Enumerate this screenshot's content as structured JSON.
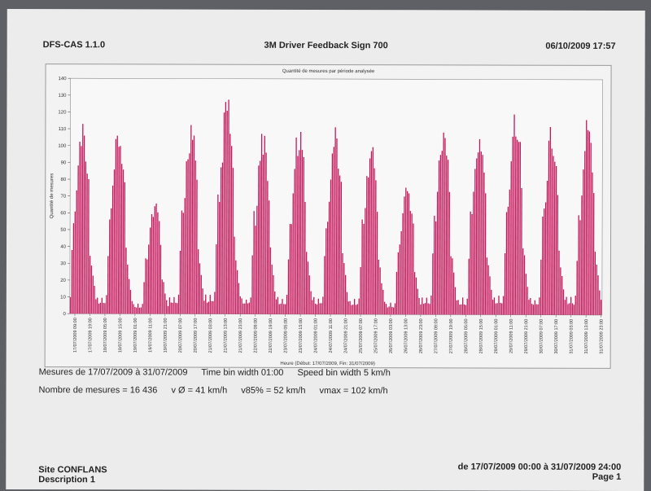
{
  "header": {
    "left": "DFS-CAS 1.1.0",
    "center": "3M Driver Feedback Sign 700",
    "right": "06/10/2009 17:57"
  },
  "chart_data": {
    "type": "bar",
    "title": "Quantité de mesures par période analysée",
    "ylabel": "Quantité de mesures",
    "xlabel": "Heure (Début: 17/07/2009, Fin: 31/07/2009)",
    "ylim": [
      0,
      140
    ],
    "yticks": [
      0,
      10,
      20,
      30,
      40,
      50,
      60,
      70,
      80,
      90,
      100,
      110,
      120,
      130,
      140
    ],
    "color": "#c2185b",
    "bin_hours": 1,
    "x_tick_labels": [
      "17/07/2009 09:00",
      "17/07/2009 19:00",
      "18/07/2009 05:00",
      "18/07/2009 15:00",
      "19/07/2009 01:00",
      "19/07/2009 11:00",
      "19/07/2009 21:00",
      "20/07/2009 07:00",
      "20/07/2009 17:00",
      "21/07/2009 03:00",
      "21/07/2009 13:00",
      "21/07/2009 23:00",
      "22/07/2009 09:00",
      "22/07/2009 19:00",
      "23/07/2009 05:00",
      "23/07/2009 15:00",
      "24/07/2009 01:00",
      "24/07/2009 11:00",
      "24/07/2009 21:00",
      "25/07/2009 07:00",
      "25/07/2009 17:00",
      "26/07/2009 03:00",
      "26/07/2009 13:00",
      "26/07/2009 23:00",
      "27/07/2009 09:00",
      "27/07/2009 19:00",
      "28/07/2009 05:00",
      "28/07/2009 15:00",
      "29/07/2009 01:00",
      "29/07/2009 11:00",
      "29/07/2009 21:00",
      "30/07/2009 07:00",
      "30/07/2009 17:00",
      "31/07/2009 03:00",
      "31/07/2009 13:00",
      "31/07/2009 23:00"
    ],
    "daily_peaks": [
      {
        "date": "17/07/2009",
        "peak": 120
      },
      {
        "date": "18/07/2009",
        "peak": 114
      },
      {
        "date": "19/07/2009",
        "peak": 70
      },
      {
        "date": "20/07/2009",
        "peak": 118
      },
      {
        "date": "21/07/2009",
        "peak": 133
      },
      {
        "date": "22/07/2009",
        "peak": 114
      },
      {
        "date": "23/07/2009",
        "peak": 117
      },
      {
        "date": "24/07/2009",
        "peak": 115
      },
      {
        "date": "25/07/2009",
        "peak": 105
      },
      {
        "date": "26/07/2009",
        "peak": 81
      },
      {
        "date": "27/07/2009",
        "peak": 120
      },
      {
        "date": "28/07/2009",
        "peak": 114
      },
      {
        "date": "29/07/2009",
        "peak": 129
      },
      {
        "date": "30/07/2009",
        "peak": 116
      },
      {
        "date": "31/07/2009",
        "peak": 122
      }
    ]
  },
  "info": {
    "period": "Mesures de 17/07/2009 à 31/07/2009",
    "time_bin": "Time bin width 01:00",
    "speed_bin": "Speed bin width 5 km/h",
    "count": "Nombre de mesures = 16 436",
    "vmean": "v Ø = 41  km/h",
    "v85": "v85% = 52  km/h",
    "vmax": "vmax = 102  km/h"
  },
  "footer": {
    "site": "Site CONFLANS",
    "description": "Description 1",
    "range": "de 17/07/2009 00:00   à 31/07/2009 24:00",
    "page": "Page 1"
  }
}
